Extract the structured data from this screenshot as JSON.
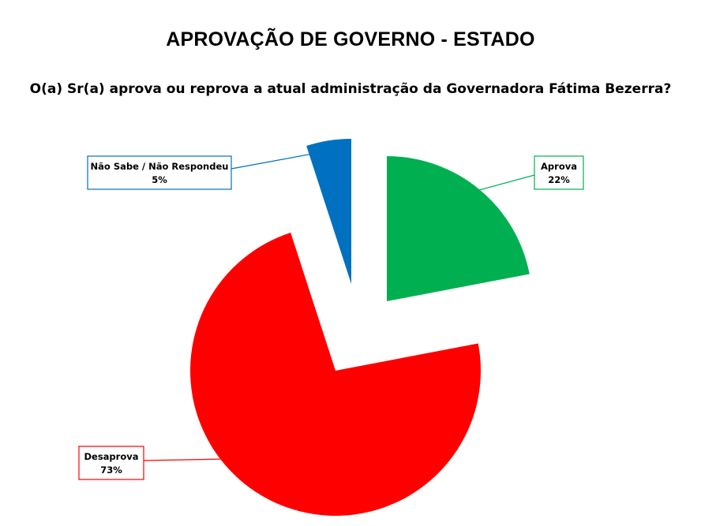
{
  "chart_data": {
    "type": "pie",
    "title": "APROVAÇÃO DE GOVERNO - ESTADO",
    "subtitle": "O(a) Sr(a) aprova ou reprova a atual administração da Governadora Fátima Bezerra?",
    "slices": [
      {
        "label": "Aprova",
        "value": 22,
        "value_label": "22%",
        "color": "#00b050",
        "exploded": true
      },
      {
        "label": "Desaprova",
        "value": 73,
        "value_label": "73%",
        "color": "#ff0000",
        "exploded": true
      },
      {
        "label": "Não Sabe / Não Respondeu",
        "value": 5,
        "value_label": "5%",
        "color": "#0070c0",
        "exploded": true
      }
    ],
    "start_angle_deg": 0,
    "direction": "clockwise"
  }
}
